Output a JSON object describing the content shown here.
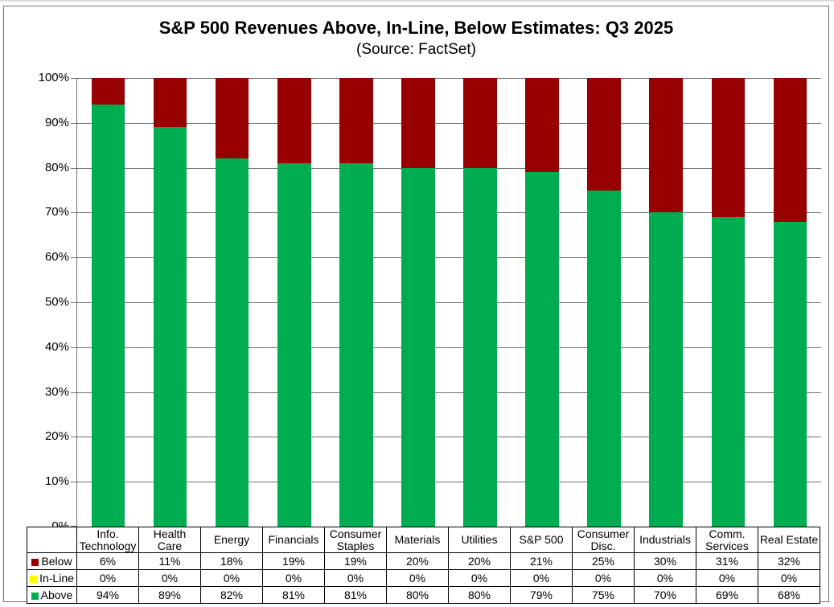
{
  "chart_data": {
    "type": "bar",
    "stacked": true,
    "title": "S&P 500 Revenues Above, In-Line, Below Estimates: Q3 2025",
    "subtitle": "(Source: FactSet)",
    "categories": [
      "Info. Technology",
      "Health Care",
      "Energy",
      "Financials",
      "Consumer Staples",
      "Materials",
      "Utilities",
      "S&P 500",
      "Consumer Disc.",
      "Industrials",
      "Comm. Services",
      "Real Estate"
    ],
    "series": [
      {
        "name": "Below",
        "color": "#960000",
        "values": [
          6,
          11,
          18,
          19,
          19,
          20,
          20,
          21,
          25,
          30,
          31,
          32
        ]
      },
      {
        "name": "In-Line",
        "color": "#FFFF00",
        "values": [
          0,
          0,
          0,
          0,
          0,
          0,
          0,
          0,
          0,
          0,
          0,
          0
        ]
      },
      {
        "name": "Above",
        "color": "#00AC50",
        "values": [
          94,
          89,
          82,
          81,
          81,
          80,
          80,
          79,
          75,
          70,
          69,
          68
        ]
      }
    ],
    "stack_order_bottom_to_top": [
      "Above",
      "In-Line",
      "Below"
    ],
    "value_suffix": "%",
    "ylim": [
      0,
      100
    ],
    "ytick_step": 10,
    "ytick_labels": [
      "0%",
      "10%",
      "20%",
      "30%",
      "40%",
      "50%",
      "60%",
      "70%",
      "80%",
      "90%",
      "100%"
    ],
    "grid": true,
    "gridline_color": "#6f6f6f",
    "axis_color": "#6f6f6f",
    "table_border_color": "#000000",
    "legend_position": "data-table-left-column"
  }
}
